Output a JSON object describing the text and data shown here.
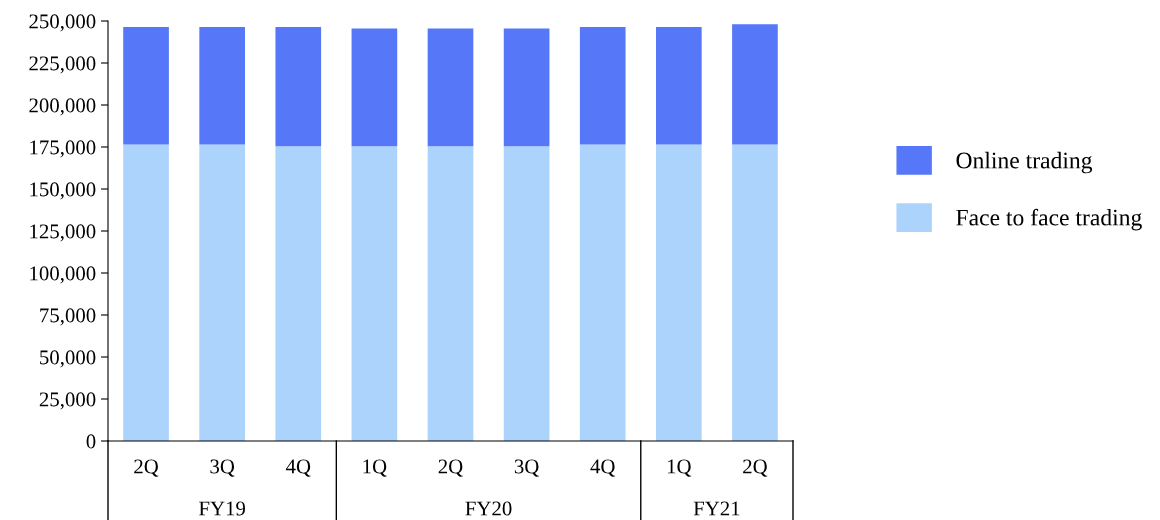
{
  "chart_data": {
    "type": "bar",
    "stacked": true,
    "categories": [
      "2Q",
      "3Q",
      "4Q",
      "1Q",
      "2Q",
      "3Q",
      "4Q",
      "1Q",
      "2Q"
    ],
    "series": [
      {
        "name": "Face to face trading",
        "color": "#acd3fb",
        "values": [
          176500,
          176500,
          175500,
          175500,
          175500,
          175500,
          176500,
          176500,
          176500
        ]
      },
      {
        "name": "Online trading",
        "color": "#5577f8",
        "values": [
          70000,
          70000,
          71000,
          70000,
          70000,
          70000,
          70000,
          70000,
          71500
        ]
      }
    ],
    "ylim": [
      0,
      250000
    ],
    "yticks": [
      0,
      {
        "value": 25000,
        "label": "25,000"
      },
      {
        "value": 50000,
        "label": "50,000"
      },
      {
        "value": 75000,
        "label": "75,000"
      },
      {
        "value": 100000,
        "label": "100,000"
      },
      {
        "value": 125000,
        "label": "125,000"
      },
      {
        "value": 150000,
        "label": "150,000"
      },
      {
        "value": 175000,
        "label": "175,000"
      },
      {
        "value": 200000,
        "label": "200,000"
      },
      {
        "value": 225000,
        "label": "225,000"
      },
      {
        "value": 250000,
        "label": "250,000"
      }
    ],
    "annotations": [
      "FY19",
      "FY20",
      "FY21"
    ],
    "grid": false,
    "legend": "right"
  }
}
